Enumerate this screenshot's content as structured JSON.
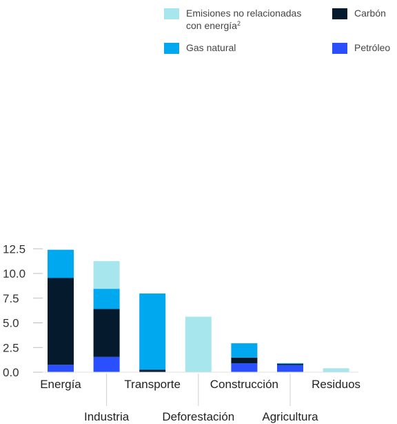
{
  "chart_data": {
    "type": "bar",
    "stacked": true,
    "categories": [
      "Energía",
      "Industria",
      "Transporte",
      "Deforestación",
      "Construcción",
      "Agricultura",
      "Residuos"
    ],
    "series": [
      {
        "name": "Petróleo",
        "color": "#2a4fff",
        "values": [
          0.75,
          1.55,
          0,
          0,
          0.9,
          0.72,
          0
        ]
      },
      {
        "name": "Carbón",
        "color": "#061a2e",
        "values": [
          8.8,
          4.85,
          0.25,
          0,
          0.58,
          0.13,
          0
        ]
      },
      {
        "name": "Gas natural",
        "color": "#00a8f0",
        "values": [
          2.85,
          2.05,
          7.72,
          0,
          1.45,
          0.07,
          0
        ]
      },
      {
        "name": "Emisiones no relacionadas con energía",
        "color": "#a8e6ee",
        "values": [
          0,
          2.8,
          0,
          5.62,
          0,
          0,
          0.4
        ]
      }
    ],
    "yticks": [
      "0.0",
      "2.5",
      "5.0",
      "7.5",
      "10.0",
      "12.5"
    ],
    "ylim": [
      0,
      12.5
    ],
    "legend": {
      "non_energy": {
        "label_line1": "Emisiones no relacionadas",
        "label_line2": "con energía",
        "footnote": "2"
      },
      "coal": "Carbón",
      "gas": "Gas natural",
      "oil": "Petróleo"
    }
  }
}
